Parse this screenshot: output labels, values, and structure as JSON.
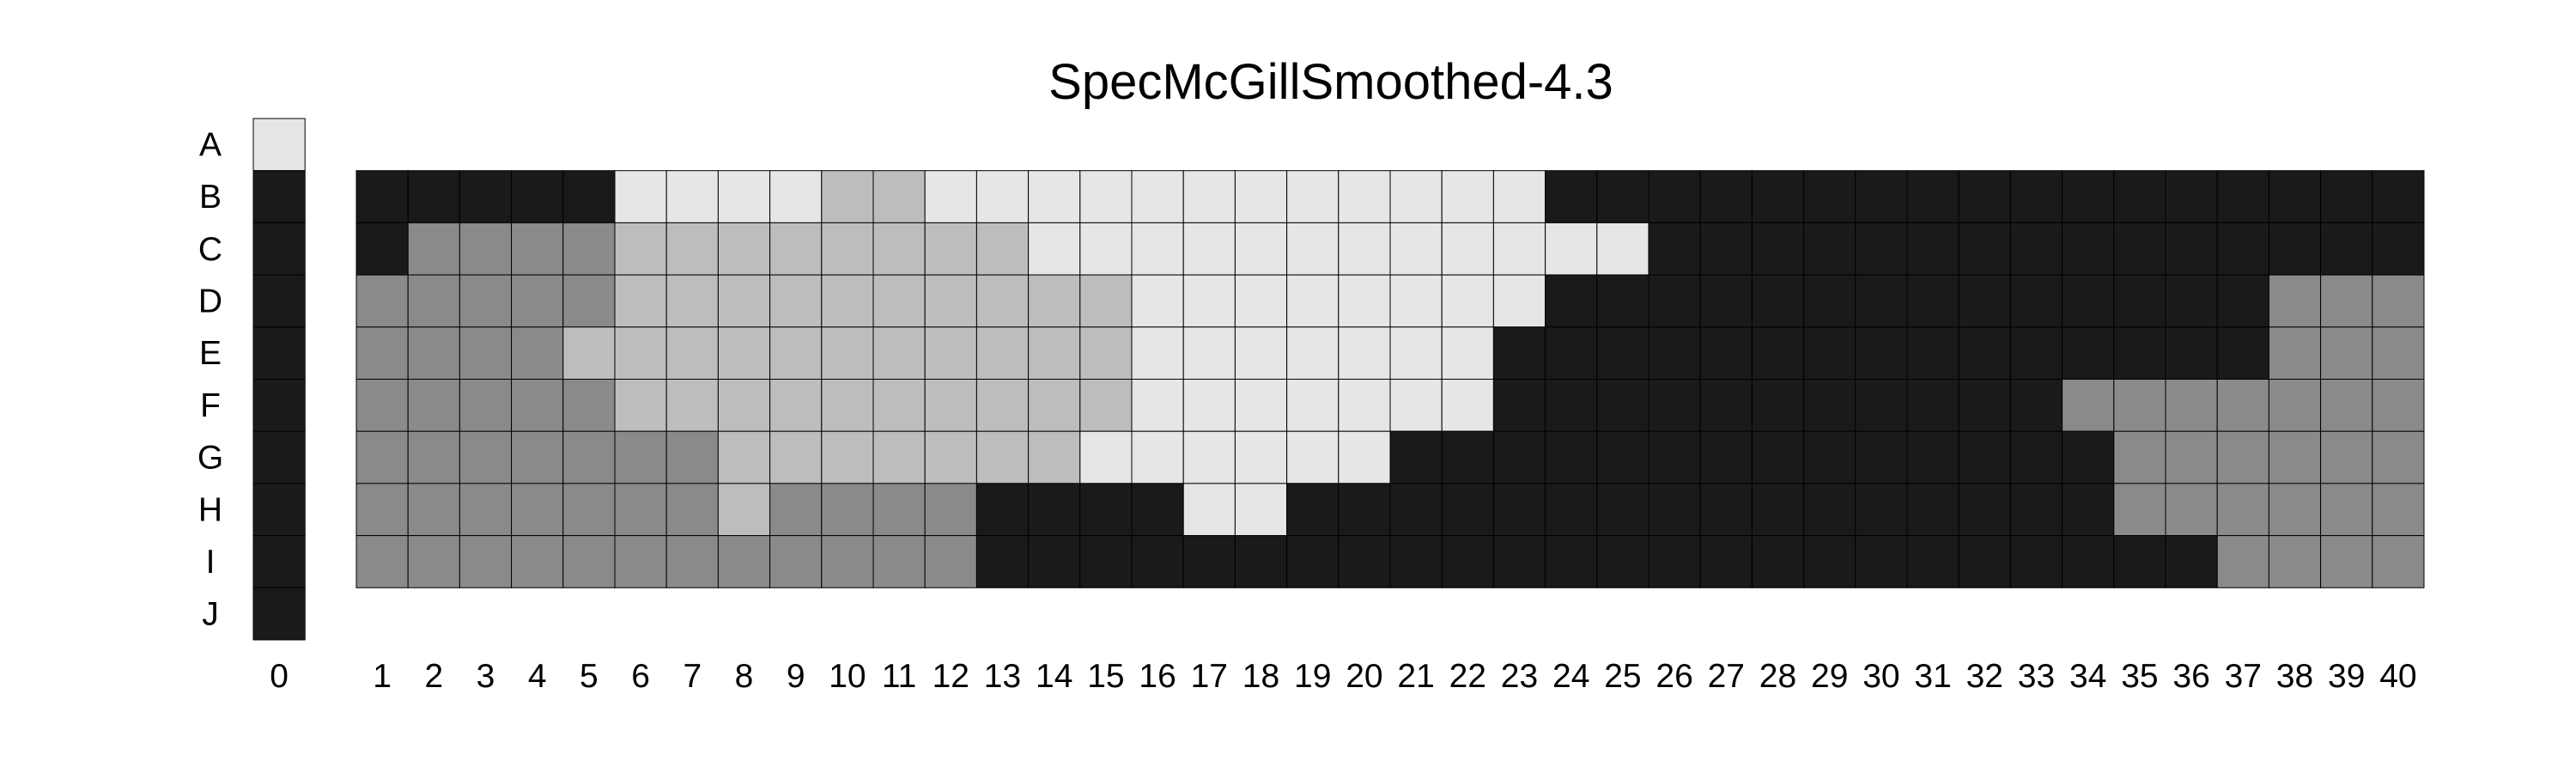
{
  "chart_data": {
    "type": "heatmap",
    "title": "SpecMcGillSmoothed-4.3",
    "xlabel": "",
    "ylabel": "",
    "row_labels": [
      "A",
      "B",
      "C",
      "D",
      "E",
      "F",
      "G",
      "H",
      "I",
      "J"
    ],
    "column_labels": [
      "1",
      "2",
      "3",
      "4",
      "5",
      "6",
      "7",
      "8",
      "9",
      "10",
      "11",
      "12",
      "13",
      "14",
      "15",
      "16",
      "17",
      "18",
      "19",
      "20",
      "21",
      "22",
      "23",
      "24",
      "25",
      "26",
      "27",
      "28",
      "29",
      "30",
      "31",
      "32",
      "33",
      "34",
      "35",
      "36",
      "37",
      "38",
      "39",
      "40"
    ],
    "zero_column_label": "0",
    "zero_column_rows": [
      "A",
      "B",
      "C",
      "D",
      "E",
      "F",
      "G",
      "H",
      "I",
      "J"
    ],
    "palette": {
      "0": "#1a1a1a",
      "1": "#8a8a8a",
      "2": "#bdbdbd",
      "3": "#e6e6e6"
    },
    "zero_column_values": [
      3,
      0,
      0,
      0,
      0,
      0,
      0,
      0,
      0,
      0
    ],
    "grid_rows": [
      "B",
      "C",
      "D",
      "E",
      "F",
      "G",
      "H",
      "I"
    ],
    "values": [
      [
        0,
        0,
        0,
        0,
        0,
        3,
        3,
        3,
        3,
        2,
        2,
        3,
        3,
        3,
        3,
        3,
        3,
        3,
        3,
        3,
        3,
        3,
        3,
        0,
        0,
        0,
        0,
        0,
        0,
        0,
        0,
        0,
        0,
        0,
        0,
        0,
        0,
        0,
        0,
        0
      ],
      [
        0,
        1,
        1,
        1,
        1,
        2,
        2,
        2,
        2,
        2,
        2,
        2,
        2,
        3,
        3,
        3,
        3,
        3,
        3,
        3,
        3,
        3,
        3,
        3,
        3,
        0,
        0,
        0,
        0,
        0,
        0,
        0,
        0,
        0,
        0,
        0,
        0,
        0,
        0,
        0
      ],
      [
        1,
        1,
        1,
        1,
        1,
        2,
        2,
        2,
        2,
        2,
        2,
        2,
        2,
        2,
        2,
        3,
        3,
        3,
        3,
        3,
        3,
        3,
        3,
        0,
        0,
        0,
        0,
        0,
        0,
        0,
        0,
        0,
        0,
        0,
        0,
        0,
        0,
        1,
        1,
        1
      ],
      [
        1,
        1,
        1,
        1,
        2,
        2,
        2,
        2,
        2,
        2,
        2,
        2,
        2,
        2,
        2,
        3,
        3,
        3,
        3,
        3,
        3,
        3,
        0,
        0,
        0,
        0,
        0,
        0,
        0,
        0,
        0,
        0,
        0,
        0,
        0,
        0,
        0,
        1,
        1,
        1
      ],
      [
        1,
        1,
        1,
        1,
        1,
        2,
        2,
        2,
        2,
        2,
        2,
        2,
        2,
        2,
        2,
        3,
        3,
        3,
        3,
        3,
        3,
        3,
        0,
        0,
        0,
        0,
        0,
        0,
        0,
        0,
        0,
        0,
        0,
        1,
        1,
        1,
        1,
        1,
        1,
        1
      ],
      [
        1,
        1,
        1,
        1,
        1,
        1,
        1,
        2,
        2,
        2,
        2,
        2,
        2,
        2,
        3,
        3,
        3,
        3,
        3,
        3,
        0,
        0,
        0,
        0,
        0,
        0,
        0,
        0,
        0,
        0,
        0,
        0,
        0,
        0,
        1,
        1,
        1,
        1,
        1,
        1
      ],
      [
        1,
        1,
        1,
        1,
        1,
        1,
        1,
        2,
        1,
        1,
        1,
        1,
        0,
        0,
        0,
        0,
        3,
        3,
        0,
        0,
        0,
        0,
        0,
        0,
        0,
        0,
        0,
        0,
        0,
        0,
        0,
        0,
        0,
        0,
        1,
        1,
        1,
        1,
        1,
        1
      ],
      [
        1,
        1,
        1,
        1,
        1,
        1,
        1,
        1,
        1,
        1,
        1,
        1,
        0,
        0,
        0,
        0,
        0,
        0,
        0,
        0,
        0,
        0,
        0,
        0,
        0,
        0,
        0,
        0,
        0,
        0,
        0,
        0,
        0,
        0,
        0,
        0,
        1,
        1,
        1,
        1
      ]
    ]
  }
}
